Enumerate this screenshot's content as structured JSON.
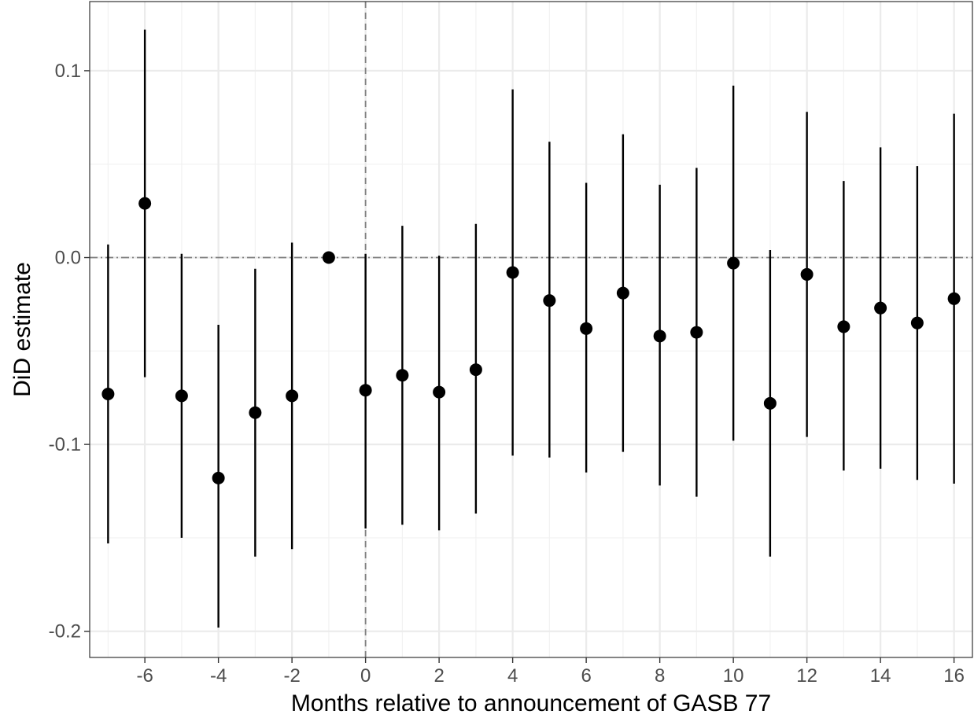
{
  "chart_data": {
    "type": "scatter",
    "title": "",
    "xlabel": "Months relative to announcement of GASB 77",
    "ylabel": "DiD estimate",
    "xlim": [
      -7.5,
      16.5
    ],
    "ylim": [
      -0.214,
      0.137
    ],
    "x_ticks": [
      -6,
      -4,
      -2,
      0,
      2,
      4,
      6,
      8,
      10,
      12,
      14,
      16
    ],
    "x_tick_labels": [
      "-6",
      "-4",
      "-2",
      "0",
      "2",
      "4",
      "6",
      "8",
      "10",
      "12",
      "14",
      "16"
    ],
    "y_ticks": [
      0.1,
      0.0,
      -0.1,
      -0.2
    ],
    "y_tick_labels": [
      "0.1",
      "0.0",
      "-0.1",
      "-0.2"
    ],
    "grid": true,
    "reference_lines": {
      "horizontal_y": 0,
      "vertical_x": 0
    },
    "point_color": "#000000",
    "series": [
      {
        "x": [
          -7,
          -6,
          -5,
          -4,
          -3,
          -2,
          -1,
          0,
          1,
          2,
          3,
          4,
          5,
          6,
          7,
          8,
          9,
          10,
          11,
          12,
          13,
          14,
          15,
          16
        ],
        "y": [
          -0.073,
          0.029,
          -0.074,
          -0.118,
          -0.083,
          -0.074,
          0.0,
          -0.071,
          -0.063,
          -0.072,
          -0.06,
          -0.008,
          -0.023,
          -0.038,
          -0.019,
          -0.042,
          -0.04,
          -0.003,
          -0.078,
          -0.009,
          -0.037,
          -0.027,
          -0.035,
          -0.022
        ],
        "lower": [
          -0.153,
          -0.064,
          -0.15,
          -0.198,
          -0.16,
          -0.156,
          0.0,
          -0.145,
          -0.143,
          -0.146,
          -0.137,
          -0.106,
          -0.107,
          -0.115,
          -0.104,
          -0.122,
          -0.128,
          -0.098,
          -0.16,
          -0.096,
          -0.114,
          -0.113,
          -0.119,
          -0.121
        ],
        "upper": [
          0.007,
          0.122,
          0.002,
          -0.036,
          -0.006,
          0.008,
          0.0,
          0.002,
          0.017,
          0.001,
          0.018,
          0.09,
          0.062,
          0.04,
          0.066,
          0.039,
          0.048,
          0.092,
          0.004,
          0.078,
          0.041,
          0.059,
          0.049,
          0.077
        ]
      }
    ]
  }
}
